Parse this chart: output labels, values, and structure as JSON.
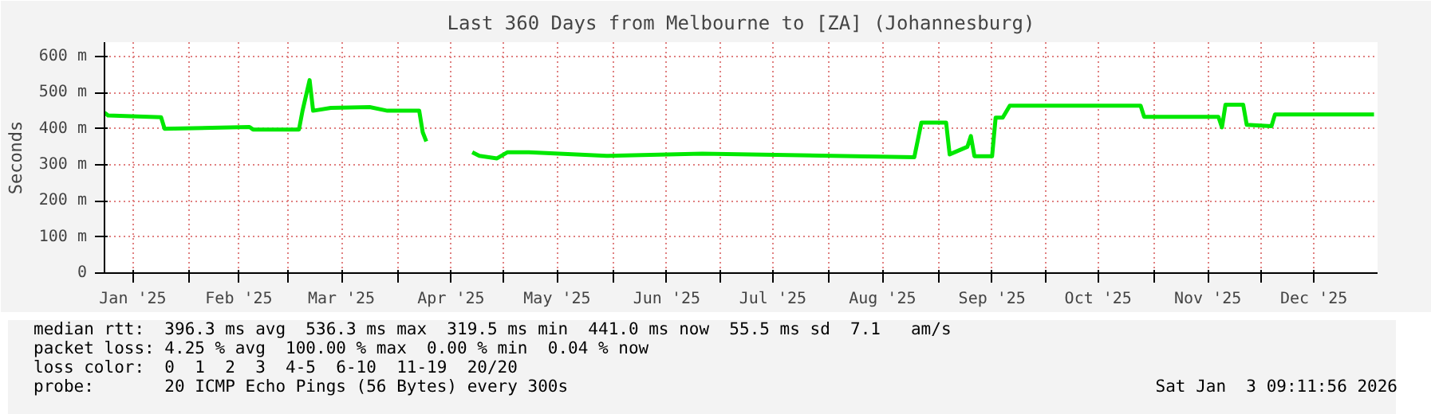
{
  "chart_data": {
    "type": "line",
    "title": "Last 360 Days from Melbourne to [ZA] (Johannesburg)",
    "ylabel": "Seconds",
    "x": [
      "2025-01-08",
      "2025-01-09",
      "2025-01-24",
      "2025-01-25",
      "2025-02-18",
      "2025-02-19",
      "2025-03-04",
      "2025-03-05",
      "2025-03-07",
      "2025-03-08",
      "2025-03-13",
      "2025-03-24",
      "2025-03-29",
      "2025-04-07",
      "2025-04-08",
      "2025-04-09",
      "2025-04-15",
      "2025-04-22",
      "2025-04-24",
      "2025-04-29",
      "2025-05-02",
      "2025-05-08",
      "2025-05-30",
      "2025-06-26",
      "2025-08-25",
      "2025-08-27",
      "2025-09-03",
      "2025-09-04",
      "2025-09-09",
      "2025-09-10",
      "2025-09-11",
      "2025-09-16",
      "2025-09-17",
      "2025-09-19",
      "2025-09-21",
      "2025-10-28",
      "2025-10-29",
      "2025-11-19",
      "2025-11-20",
      "2025-11-21",
      "2025-11-26",
      "2025-11-27",
      "2025-12-04",
      "2025-12-05",
      "2026-01-02"
    ],
    "series": [
      {
        "color": "#00e800",
        "values": [
          445,
          437,
          432,
          400,
          405,
          398,
          398,
          450,
          535,
          450,
          458,
          460,
          450,
          450,
          390,
          365,
          null,
          335,
          325,
          318,
          335,
          335,
          325,
          331,
          321,
          417,
          417,
          329,
          350,
          380,
          324,
          324,
          431,
          431,
          464,
          464,
          433,
          433,
          404,
          467,
          467,
          411,
          407,
          440,
          440
        ]
      }
    ],
    "xlim": [
      "2025-01-08",
      "2026-01-03"
    ],
    "xticks": [
      {
        "value": "2025-01-16",
        "label": "Jan '25"
      },
      {
        "value": "2025-02-01",
        "label": null
      },
      {
        "value": "2025-02-15",
        "label": "Feb '25"
      },
      {
        "value": "2025-03-01",
        "label": null
      },
      {
        "value": "2025-03-16",
        "label": "Mar '25"
      },
      {
        "value": "2025-04-01",
        "label": null
      },
      {
        "value": "2025-04-16",
        "label": "Apr '25"
      },
      {
        "value": "2025-05-01",
        "label": null
      },
      {
        "value": "2025-05-16",
        "label": "May '25"
      },
      {
        "value": "2025-06-01",
        "label": null
      },
      {
        "value": "2025-06-16",
        "label": "Jun '25"
      },
      {
        "value": "2025-07-01",
        "label": null
      },
      {
        "value": "2025-07-16",
        "label": "Jul '25"
      },
      {
        "value": "2025-08-01",
        "label": null
      },
      {
        "value": "2025-08-16",
        "label": "Aug '25"
      },
      {
        "value": "2025-09-01",
        "label": null
      },
      {
        "value": "2025-09-16",
        "label": "Sep '25"
      },
      {
        "value": "2025-10-01",
        "label": null
      },
      {
        "value": "2025-10-16",
        "label": "Oct '25"
      },
      {
        "value": "2025-11-01",
        "label": null
      },
      {
        "value": "2025-11-16",
        "label": "Nov '25"
      },
      {
        "value": "2025-12-01",
        "label": null
      },
      {
        "value": "2025-12-16",
        "label": "Dec '25"
      }
    ],
    "ylim": [
      0,
      640
    ],
    "yticks": [
      0,
      {
        "value": 100,
        "label": "100 m"
      },
      {
        "value": 200,
        "label": "200 m"
      },
      {
        "value": 300,
        "label": "300 m"
      },
      {
        "value": 400,
        "label": "400 m"
      },
      {
        "value": 500,
        "label": "500 m"
      },
      {
        "value": 600,
        "label": "600 m"
      }
    ],
    "grid": true,
    "marker": "none",
    "line_style": "solid",
    "annotations": [
      "median rtt:  396.3 ms avg  536.3 ms max  319.5 ms min  441.0 ms now  55.5 ms sd  7.1   am/s",
      "packet loss: 4.25 % avg  100.00 % max  0.00 % min  0.04 % now",
      "loss color:  0  1  2  3  4-5  6-10  11-19  20/20",
      "probe:       20 ICMP Echo Pings (56 Bytes) every 300s",
      "Sat Jan  3 09:11:56 2026"
    ]
  }
}
